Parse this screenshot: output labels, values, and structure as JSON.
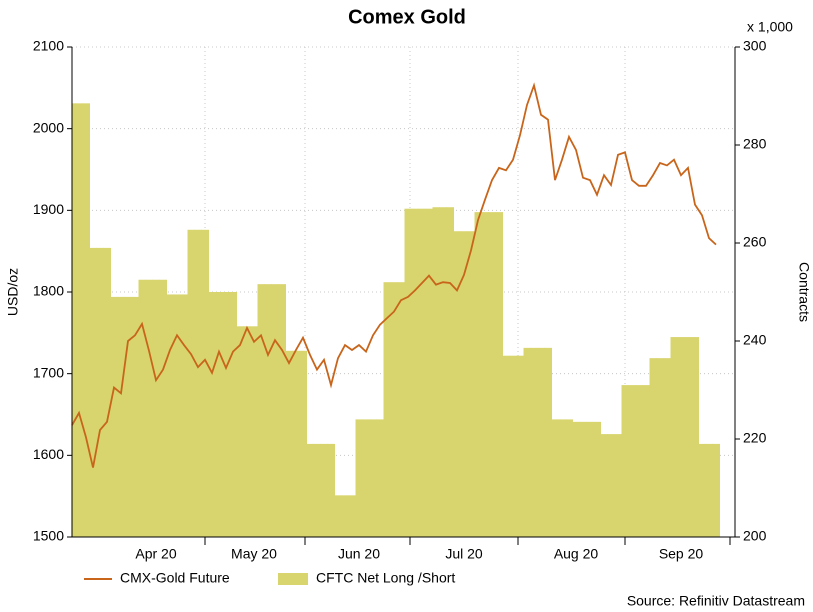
{
  "chart_data": {
    "type": "line",
    "title": "Comex Gold",
    "y_label": "USD/oz",
    "y2_label": "Contracts",
    "y2_unit_note": "x 1,000",
    "source": "Source: Refinitiv Datastream",
    "categories": [
      null,
      null,
      null,
      null,
      null,
      null,
      null,
      null,
      null,
      null,
      null,
      null,
      "Apr 20",
      null,
      null,
      null,
      null,
      null,
      null,
      null,
      null,
      null,
      null,
      null,
      null,
      null,
      "May 20",
      null,
      null,
      null,
      null,
      null,
      null,
      null,
      null,
      null,
      null,
      null,
      null,
      null,
      null,
      "Jun 20",
      null,
      null,
      null,
      null,
      null,
      null,
      null,
      null,
      null,
      null,
      null,
      null,
      null,
      null,
      "Jul 20",
      null,
      null,
      null,
      null,
      null,
      null,
      null,
      null,
      null,
      null,
      null,
      null,
      null,
      null,
      null,
      "Aug 20",
      null,
      null,
      null,
      null,
      null,
      null,
      null,
      null,
      null,
      null,
      null,
      null,
      null,
      null,
      "Sep 20",
      null,
      null,
      null,
      null,
      null
    ],
    "series": [
      {
        "name": "CMX-Gold Future",
        "color": "#c8651b",
        "values": [
          1637,
          1652,
          1622,
          1585,
          1631,
          1641,
          1683,
          1676,
          1740,
          1747,
          1761,
          1728,
          1692,
          1705,
          1729,
          1747,
          1735,
          1724,
          1708,
          1717,
          1701,
          1727,
          1707,
          1727,
          1735,
          1756,
          1739,
          1747,
          1723,
          1741,
          1729,
          1713,
          1729,
          1744,
          1723,
          1705,
          1717,
          1686,
          1719,
          1735,
          1729,
          1735,
          1727,
          1747,
          1760,
          1768,
          1776,
          1790,
          1794,
          1802,
          1811,
          1820,
          1809,
          1812,
          1811,
          1802,
          1821,
          1851,
          1888,
          1913,
          1937,
          1952,
          1949,
          1962,
          1992,
          2029,
          2053,
          2017,
          2011,
          1937,
          1962,
          1990,
          1974,
          1940,
          1937,
          1919,
          1943,
          1931,
          1968,
          1971,
          1937,
          1930,
          1930,
          1943,
          1958,
          1955,
          1962,
          1943,
          1952,
          1907,
          1894,
          1866,
          1858
        ]
      },
      {
        "name": "CFTC Net Long /Short",
        "color": "#d8d46e",
        "type": "area",
        "axis": "y2",
        "values": [
          288.5,
          288.5,
          288.5,
          259,
          259,
          259,
          249,
          249,
          249,
          249,
          252.5,
          252.5,
          252.5,
          252.5,
          249.5,
          249.5,
          249.5,
          262.7,
          262.7,
          262.7,
          250,
          250,
          250,
          250,
          243,
          243,
          243,
          251.6,
          251.6,
          251.6,
          251.6,
          238,
          238,
          238,
          219,
          219,
          219,
          219,
          208.5,
          208.5,
          208.5,
          224,
          224,
          224,
          224,
          252,
          252,
          252,
          267,
          267,
          267,
          267,
          267.3,
          267.3,
          267.3,
          262.4,
          262.4,
          262.4,
          266.3,
          266.3,
          266.3,
          266.3,
          237,
          237,
          237,
          238.6,
          238.6,
          238.6,
          238.6,
          224,
          224,
          224,
          223.5,
          223.5,
          223.5,
          223.5,
          221,
          221,
          221,
          231,
          231,
          231,
          231,
          236.5,
          236.5,
          236.5,
          240.8,
          240.8,
          240.8,
          240.8,
          219,
          219,
          219
        ]
      }
    ],
    "ylim": [
      1500,
      2100
    ],
    "yticks": [
      1500,
      1600,
      1700,
      1800,
      1900,
      2000,
      2100
    ],
    "y2lim": [
      200,
      300
    ],
    "y2ticks": [
      200,
      220,
      240,
      260,
      280,
      300
    ],
    "grid": true
  }
}
